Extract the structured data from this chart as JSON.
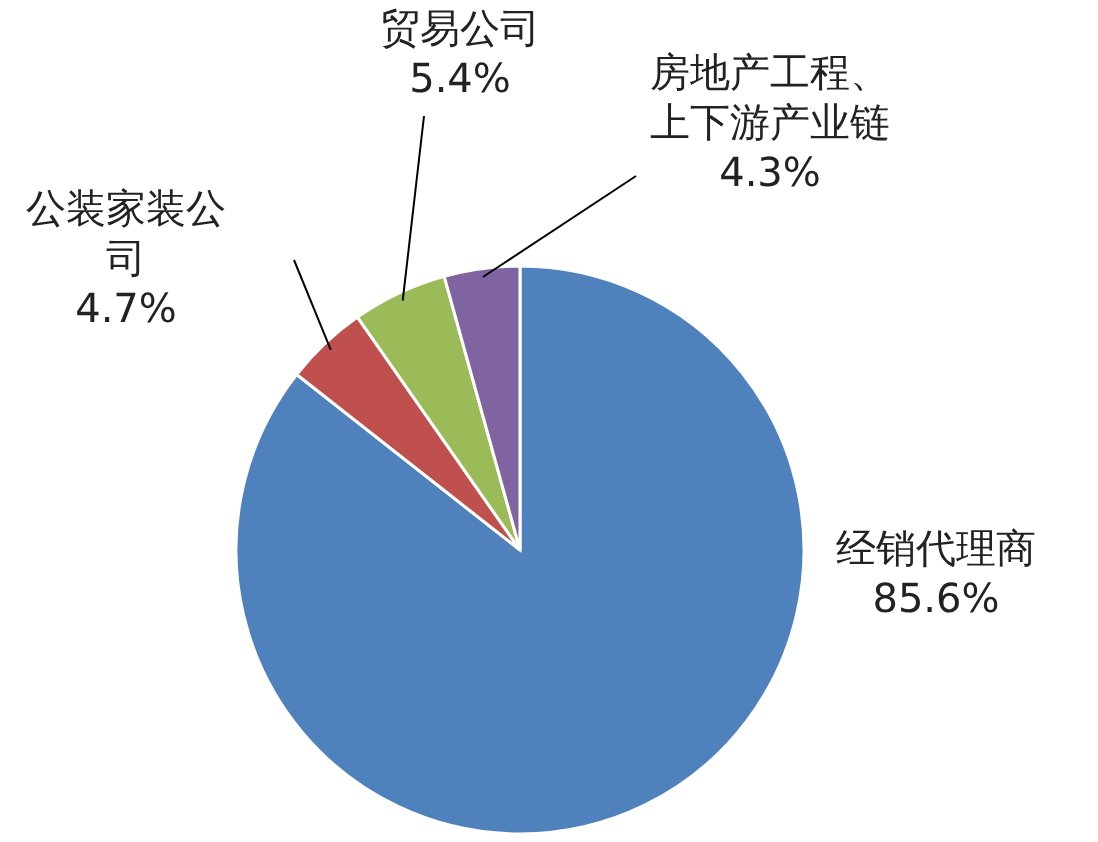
{
  "chart_data": {
    "type": "pie",
    "categories": [
      "经销代理商",
      "公装家装公司",
      "贸易公司",
      "房地产工程、上下游产业链"
    ],
    "values": [
      85.6,
      4.7,
      5.4,
      4.3
    ],
    "value_labels": [
      "85.6%",
      "4.7%",
      "5.4%",
      "4.3%"
    ],
    "colors": [
      "#4f81bd",
      "#c0504d",
      "#9bbb59",
      "#8064a2"
    ]
  }
}
